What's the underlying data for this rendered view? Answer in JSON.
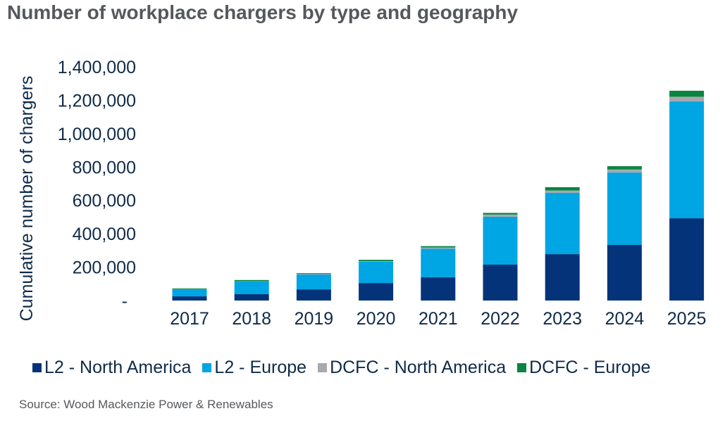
{
  "title": "Number of workplace chargers by type and geography",
  "source": "Source: Wood Mackenzie Power & Renewables",
  "chart_data": {
    "type": "bar",
    "stacked": true,
    "title": "Number of workplace chargers by type and geography",
    "xlabel": "",
    "ylabel": "Cumulative number of chargers",
    "ylim": [
      0,
      1400000
    ],
    "yticks": [
      0,
      200000,
      400000,
      600000,
      800000,
      1000000,
      1200000,
      1400000
    ],
    "ytick_labels": [
      "-",
      "200,000",
      "400,000",
      "600,000",
      "800,000",
      "1,000,000",
      "1,200,000",
      "1,400,000"
    ],
    "grid": false,
    "legend_position": "bottom",
    "categories": [
      "2017",
      "2018",
      "2019",
      "2020",
      "2021",
      "2022",
      "2023",
      "2024",
      "2025"
    ],
    "series": [
      {
        "name": "L2 - North America",
        "color": "#05337a",
        "values": [
          25000,
          38000,
          67000,
          105000,
          139000,
          215000,
          278000,
          333000,
          493000
        ]
      },
      {
        "name": "L2 - Europe",
        "color": "#00a5e3",
        "values": [
          43000,
          77000,
          89000,
          127000,
          172000,
          287000,
          367000,
          434000,
          700000
        ]
      },
      {
        "name": "DCFC - North America",
        "color": "#a7a9ac",
        "values": [
          1000,
          1000,
          4000,
          4000,
          7000,
          13000,
          14000,
          18000,
          28000
        ]
      },
      {
        "name": "DCFC - Europe",
        "color": "#0a8442",
        "values": [
          4000,
          7000,
          4000,
          8000,
          8000,
          10000,
          20000,
          20000,
          36000
        ]
      }
    ]
  }
}
